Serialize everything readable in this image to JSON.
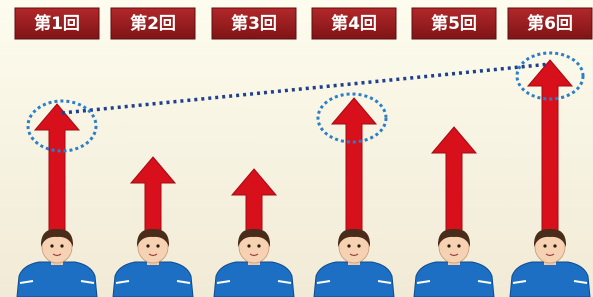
{
  "sessions": [
    {
      "label": "第1回"
    },
    {
      "label": "第2回"
    },
    {
      "label": "第3回"
    },
    {
      "label": "第4回"
    },
    {
      "label": "第5回"
    },
    {
      "label": "第6回"
    }
  ]
}
